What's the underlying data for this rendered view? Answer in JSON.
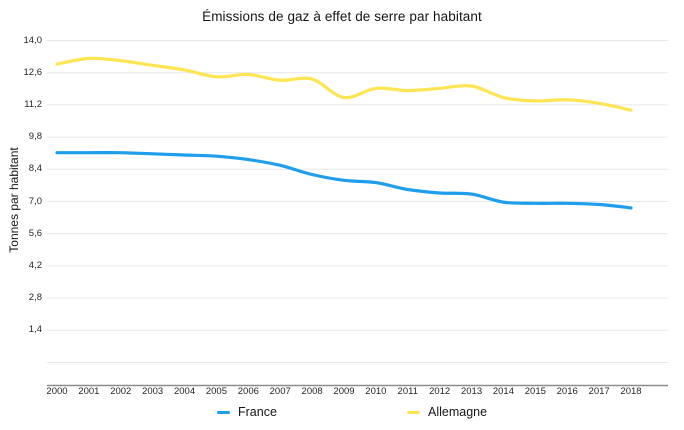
{
  "title": "Émissions de gaz à effet de serre par habitant",
  "chart_data": {
    "type": "line",
    "title": "Émissions de gaz à effet de serre par habitant",
    "xlabel": "",
    "ylabel": "Tonnes par habitant",
    "categories": [
      "2000",
      "2001",
      "2002",
      "2003",
      "2004",
      "2005",
      "2006",
      "2007",
      "2008",
      "2009",
      "2010",
      "2011",
      "2012",
      "2013",
      "2014",
      "2015",
      "2016",
      "2017",
      "2018"
    ],
    "y_tick_labels": [
      "14,0",
      "12,6",
      "11,2",
      "9,8",
      "8,4",
      "7,0",
      "5,6",
      "4,2",
      "2,8",
      "1,4"
    ],
    "ylim": [
      0,
      14
    ],
    "y_tick_step": 1.4,
    "grid": true,
    "smooth_lines": true,
    "legend_position": "bottom",
    "series": [
      {
        "name": "France",
        "color": "#1E9EEC",
        "values": [
          9.1,
          9.1,
          9.1,
          9.05,
          9.0,
          8.95,
          8.8,
          8.55,
          8.15,
          7.9,
          7.8,
          7.5,
          7.35,
          7.3,
          6.95,
          6.9,
          6.9,
          6.85,
          6.7
        ]
      },
      {
        "name": "Allemagne",
        "color": "#FFE552",
        "values": [
          12.95,
          13.2,
          13.1,
          12.9,
          12.7,
          12.4,
          12.5,
          12.25,
          12.3,
          11.5,
          11.9,
          11.8,
          11.9,
          12.0,
          11.5,
          11.35,
          11.4,
          11.25,
          10.95
        ]
      }
    ],
    "colors": {
      "grid": "#E7E7E7",
      "axis_line": "#8E8E8E",
      "text": "#262626",
      "background": "#FFFFFF"
    }
  }
}
